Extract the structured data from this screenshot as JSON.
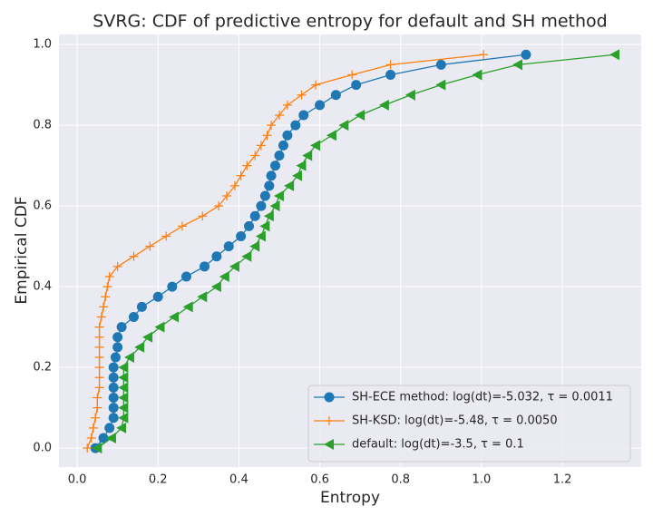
{
  "chart_data": {
    "type": "line",
    "title": "SVRG: CDF of predictive entropy for default and SH method",
    "x_label": "Entropy",
    "y_label": "Empirical CDF",
    "xlim": [
      -0.045,
      1.395
    ],
    "ylim": [
      -0.047,
      1.025
    ],
    "xticks": [
      {
        "value": 0,
        "label": "0.0"
      },
      0.2,
      0.4,
      0.6,
      0.8,
      {
        "value": 1,
        "label": "1.0"
      },
      1.2
    ],
    "yticks": [
      {
        "value": 0,
        "label": "0.0"
      },
      0.2,
      0.4,
      0.6,
      0.8,
      {
        "value": 1,
        "label": "1.0"
      }
    ],
    "grid": true,
    "legend": "lower right",
    "series": [
      {
        "name": "SH-ECE method: log(dt)=-5.032, τ = 0.0011",
        "color": "#1f77b4",
        "marker": "circle",
        "x": [
          0.045,
          0.065,
          0.08,
          0.09,
          0.09,
          0.09,
          0.09,
          0.09,
          0.09,
          0.095,
          0.1,
          0.1,
          0.11,
          0.14,
          0.16,
          0.2,
          0.235,
          0.27,
          0.315,
          0.345,
          0.375,
          0.405,
          0.425,
          0.44,
          0.455,
          0.465,
          0.475,
          0.48,
          0.49,
          0.5,
          0.51,
          0.52,
          0.54,
          0.56,
          0.6,
          0.64,
          0.69,
          0.775,
          0.9,
          1.11
        ],
        "values": [
          0,
          0.025,
          0.05,
          0.075,
          0.1,
          0.125,
          0.15,
          0.175,
          0.2,
          0.225,
          0.25,
          0.275,
          0.3,
          0.325,
          0.35,
          0.375,
          0.4,
          0.425,
          0.45,
          0.475,
          0.5,
          0.525,
          0.55,
          0.575,
          0.6,
          0.625,
          0.65,
          0.675,
          0.7,
          0.725,
          0.75,
          0.775,
          0.8,
          0.825,
          0.85,
          0.875,
          0.9,
          0.925,
          0.95,
          0.975
        ]
      },
      {
        "name": "SH-KSD: log(dt)=-5.48, τ = 0.0050",
        "color": "#ff7f0e",
        "marker": "plus",
        "x": [
          0.025,
          0.035,
          0.04,
          0.045,
          0.05,
          0.05,
          0.055,
          0.055,
          0.055,
          0.055,
          0.055,
          0.055,
          0.055,
          0.06,
          0.065,
          0.07,
          0.075,
          0.08,
          0.1,
          0.14,
          0.18,
          0.22,
          0.26,
          0.31,
          0.35,
          0.37,
          0.39,
          0.405,
          0.42,
          0.44,
          0.455,
          0.47,
          0.48,
          0.5,
          0.52,
          0.555,
          0.59,
          0.68,
          0.775,
          1.005
        ],
        "values": [
          0,
          0.025,
          0.05,
          0.075,
          0.1,
          0.125,
          0.15,
          0.175,
          0.2,
          0.225,
          0.25,
          0.275,
          0.3,
          0.325,
          0.35,
          0.375,
          0.4,
          0.425,
          0.45,
          0.475,
          0.5,
          0.525,
          0.55,
          0.575,
          0.6,
          0.625,
          0.65,
          0.675,
          0.7,
          0.725,
          0.75,
          0.775,
          0.8,
          0.825,
          0.85,
          0.875,
          0.9,
          0.925,
          0.95,
          0.975
        ]
      },
      {
        "name": "default: log(dt)=-3.5, τ = 0.1",
        "color": "#2ca02c",
        "marker": "triangle-left",
        "x": [
          0.05,
          0.085,
          0.11,
          0.115,
          0.115,
          0.115,
          0.115,
          0.115,
          0.115,
          0.13,
          0.155,
          0.175,
          0.205,
          0.24,
          0.275,
          0.31,
          0.345,
          0.365,
          0.39,
          0.42,
          0.44,
          0.455,
          0.465,
          0.475,
          0.49,
          0.5,
          0.525,
          0.545,
          0.555,
          0.57,
          0.59,
          0.63,
          0.66,
          0.7,
          0.76,
          0.825,
          0.9,
          0.99,
          1.09,
          1.33
        ],
        "values": [
          0,
          0.025,
          0.05,
          0.075,
          0.1,
          0.125,
          0.15,
          0.175,
          0.2,
          0.225,
          0.25,
          0.275,
          0.3,
          0.325,
          0.35,
          0.375,
          0.4,
          0.425,
          0.45,
          0.475,
          0.5,
          0.525,
          0.55,
          0.575,
          0.6,
          0.625,
          0.65,
          0.675,
          0.7,
          0.725,
          0.75,
          0.775,
          0.8,
          0.825,
          0.85,
          0.875,
          0.9,
          0.925,
          0.95,
          0.975
        ]
      }
    ]
  }
}
